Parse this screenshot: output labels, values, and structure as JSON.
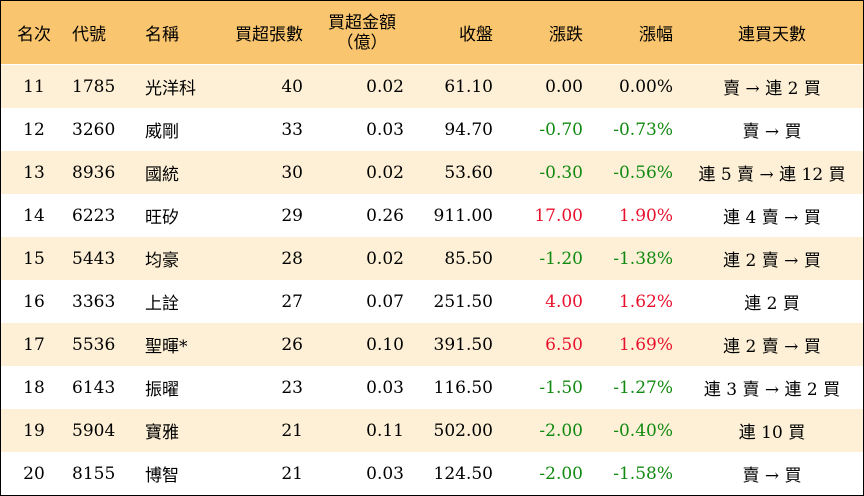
{
  "headers": {
    "rank": "名次",
    "code": "代號",
    "name": "名稱",
    "buy_lots": "買超張數",
    "buy_amount_line1": "買超金額",
    "buy_amount_line2": "（億）",
    "close": "收盤",
    "change": "漲跌",
    "change_pct": "漲幅",
    "days": "連買天數"
  },
  "rows": [
    {
      "rank": "11",
      "code": "1785",
      "name": "光洋科",
      "buy_lots": "40",
      "buy_amount": "0.02",
      "close": "61.10",
      "change": "0.00",
      "change_pct": "0.00%",
      "days": "賣 → 連 2 買",
      "trend": "zero"
    },
    {
      "rank": "12",
      "code": "3260",
      "name": "威剛",
      "buy_lots": "33",
      "buy_amount": "0.03",
      "close": "94.70",
      "change": "-0.70",
      "change_pct": "-0.73%",
      "days": "賣 → 買",
      "trend": "neg"
    },
    {
      "rank": "13",
      "code": "8936",
      "name": "國統",
      "buy_lots": "30",
      "buy_amount": "0.02",
      "close": "53.60",
      "change": "-0.30",
      "change_pct": "-0.56%",
      "days": "連 5 賣 → 連 12 買",
      "trend": "neg"
    },
    {
      "rank": "14",
      "code": "6223",
      "name": "旺矽",
      "buy_lots": "29",
      "buy_amount": "0.26",
      "close": "911.00",
      "change": "17.00",
      "change_pct": "1.90%",
      "days": "連 4 賣 → 買",
      "trend": "pos"
    },
    {
      "rank": "15",
      "code": "5443",
      "name": "均豪",
      "buy_lots": "28",
      "buy_amount": "0.02",
      "close": "85.50",
      "change": "-1.20",
      "change_pct": "-1.38%",
      "days": "連 2 賣 → 買",
      "trend": "neg"
    },
    {
      "rank": "16",
      "code": "3363",
      "name": "上詮",
      "buy_lots": "27",
      "buy_amount": "0.07",
      "close": "251.50",
      "change": "4.00",
      "change_pct": "1.62%",
      "days": "連 2 買",
      "trend": "pos"
    },
    {
      "rank": "17",
      "code": "5536",
      "name": "聖暉*",
      "buy_lots": "26",
      "buy_amount": "0.10",
      "close": "391.50",
      "change": "6.50",
      "change_pct": "1.69%",
      "days": "連 2 賣 → 買",
      "trend": "pos"
    },
    {
      "rank": "18",
      "code": "6143",
      "name": "振曜",
      "buy_lots": "23",
      "buy_amount": "0.03",
      "close": "116.50",
      "change": "-1.50",
      "change_pct": "-1.27%",
      "days": "連 3 賣 → 連 2 買",
      "trend": "neg"
    },
    {
      "rank": "19",
      "code": "5904",
      "name": "寶雅",
      "buy_lots": "21",
      "buy_amount": "0.11",
      "close": "502.00",
      "change": "-2.00",
      "change_pct": "-0.40%",
      "days": "連 10 買",
      "trend": "neg"
    },
    {
      "rank": "20",
      "code": "8155",
      "name": "博智",
      "buy_lots": "21",
      "buy_amount": "0.03",
      "close": "124.50",
      "change": "-2.00",
      "change_pct": "-1.58%",
      "days": "賣 → 買",
      "trend": "neg"
    }
  ],
  "colors": {
    "header_bg": "#f9c56e",
    "stripe_bg": "#fdf0d6",
    "up": "#e8112d",
    "down": "#128a12"
  }
}
